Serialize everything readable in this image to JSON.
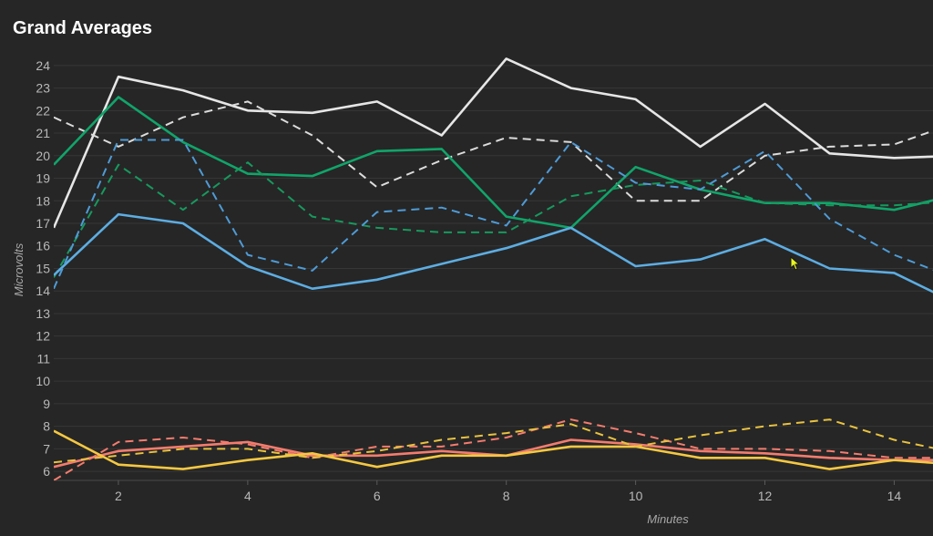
{
  "title": "Grand Averages",
  "chart_data": {
    "type": "line",
    "title": "Grand Averages",
    "xlabel": "Minutes",
    "ylabel": "Microvolts",
    "xlim": [
      1,
      14.6
    ],
    "ylim": [
      5.6,
      24.6
    ],
    "xticks": [
      2,
      4,
      6,
      8,
      10,
      12,
      14
    ],
    "yticks": [
      6,
      7,
      8,
      9,
      10,
      11,
      12,
      13,
      14,
      15,
      16,
      17,
      18,
      19,
      20,
      21,
      22,
      23,
      24
    ],
    "grid": true,
    "x": [
      1,
      2,
      3,
      4,
      5,
      6,
      7,
      8,
      9,
      10,
      11,
      12,
      13,
      14,
      15
    ],
    "series": [
      {
        "name": "White solid",
        "color": "#e6e6e6",
        "dashed": false,
        "values": [
          16.8,
          23.5,
          22.9,
          22.0,
          21.9,
          22.4,
          20.9,
          24.3,
          23.0,
          22.5,
          20.4,
          22.3,
          20.1,
          19.9,
          20.0
        ]
      },
      {
        "name": "White dashed",
        "color": "#dcdcdc",
        "dashed": true,
        "values": [
          21.7,
          20.4,
          21.7,
          22.4,
          20.9,
          18.6,
          19.8,
          20.8,
          20.6,
          18.0,
          18.0,
          20.0,
          20.4,
          20.5,
          21.5
        ]
      },
      {
        "name": "Green solid",
        "color": "#10a56a",
        "dashed": false,
        "values": [
          19.6,
          22.6,
          20.6,
          19.2,
          19.1,
          20.2,
          20.3,
          17.3,
          16.8,
          19.5,
          18.5,
          17.9,
          17.9,
          17.6,
          18.3
        ]
      },
      {
        "name": "Green dashed",
        "color": "#17995e",
        "dashed": true,
        "values": [
          14.6,
          19.6,
          17.6,
          19.7,
          17.3,
          16.8,
          16.6,
          16.6,
          18.2,
          18.7,
          18.9,
          17.9,
          17.8,
          17.8,
          18.0
        ]
      },
      {
        "name": "Blue solid",
        "color": "#5dade2",
        "dashed": false,
        "values": [
          14.7,
          17.4,
          17.0,
          15.1,
          14.1,
          14.5,
          15.2,
          15.9,
          16.8,
          15.1,
          15.4,
          16.3,
          15.0,
          14.8,
          13.4
        ]
      },
      {
        "name": "Blue dashed",
        "color": "#4e9bd6",
        "dashed": true,
        "values": [
          14.1,
          20.7,
          20.7,
          15.6,
          14.9,
          17.5,
          17.7,
          16.9,
          20.6,
          18.8,
          18.5,
          20.2,
          17.2,
          15.6,
          14.5
        ]
      },
      {
        "name": "Red solid",
        "color": "#f47c6e",
        "dashed": false,
        "values": [
          6.2,
          6.9,
          7.1,
          7.3,
          6.7,
          6.7,
          6.9,
          6.7,
          7.4,
          7.2,
          6.9,
          6.8,
          6.6,
          6.5,
          6.5
        ]
      },
      {
        "name": "Red dashed",
        "color": "#f47c6e",
        "dashed": true,
        "values": [
          5.6,
          7.3,
          7.5,
          7.2,
          6.6,
          7.1,
          7.1,
          7.5,
          8.3,
          7.7,
          7.0,
          7.0,
          6.9,
          6.6,
          6.6
        ]
      },
      {
        "name": "Yellow solid",
        "color": "#f5c842",
        "dashed": false,
        "values": [
          7.8,
          6.3,
          6.1,
          6.5,
          6.8,
          6.2,
          6.7,
          6.7,
          7.1,
          7.1,
          6.6,
          6.6,
          6.1,
          6.5,
          6.3
        ]
      },
      {
        "name": "Yellow dashed",
        "color": "#e8c240",
        "dashed": true,
        "values": [
          6.4,
          6.7,
          7.0,
          7.0,
          6.6,
          6.9,
          7.4,
          7.7,
          8.1,
          7.1,
          7.6,
          8.0,
          8.3,
          7.4,
          6.8
        ]
      }
    ]
  }
}
